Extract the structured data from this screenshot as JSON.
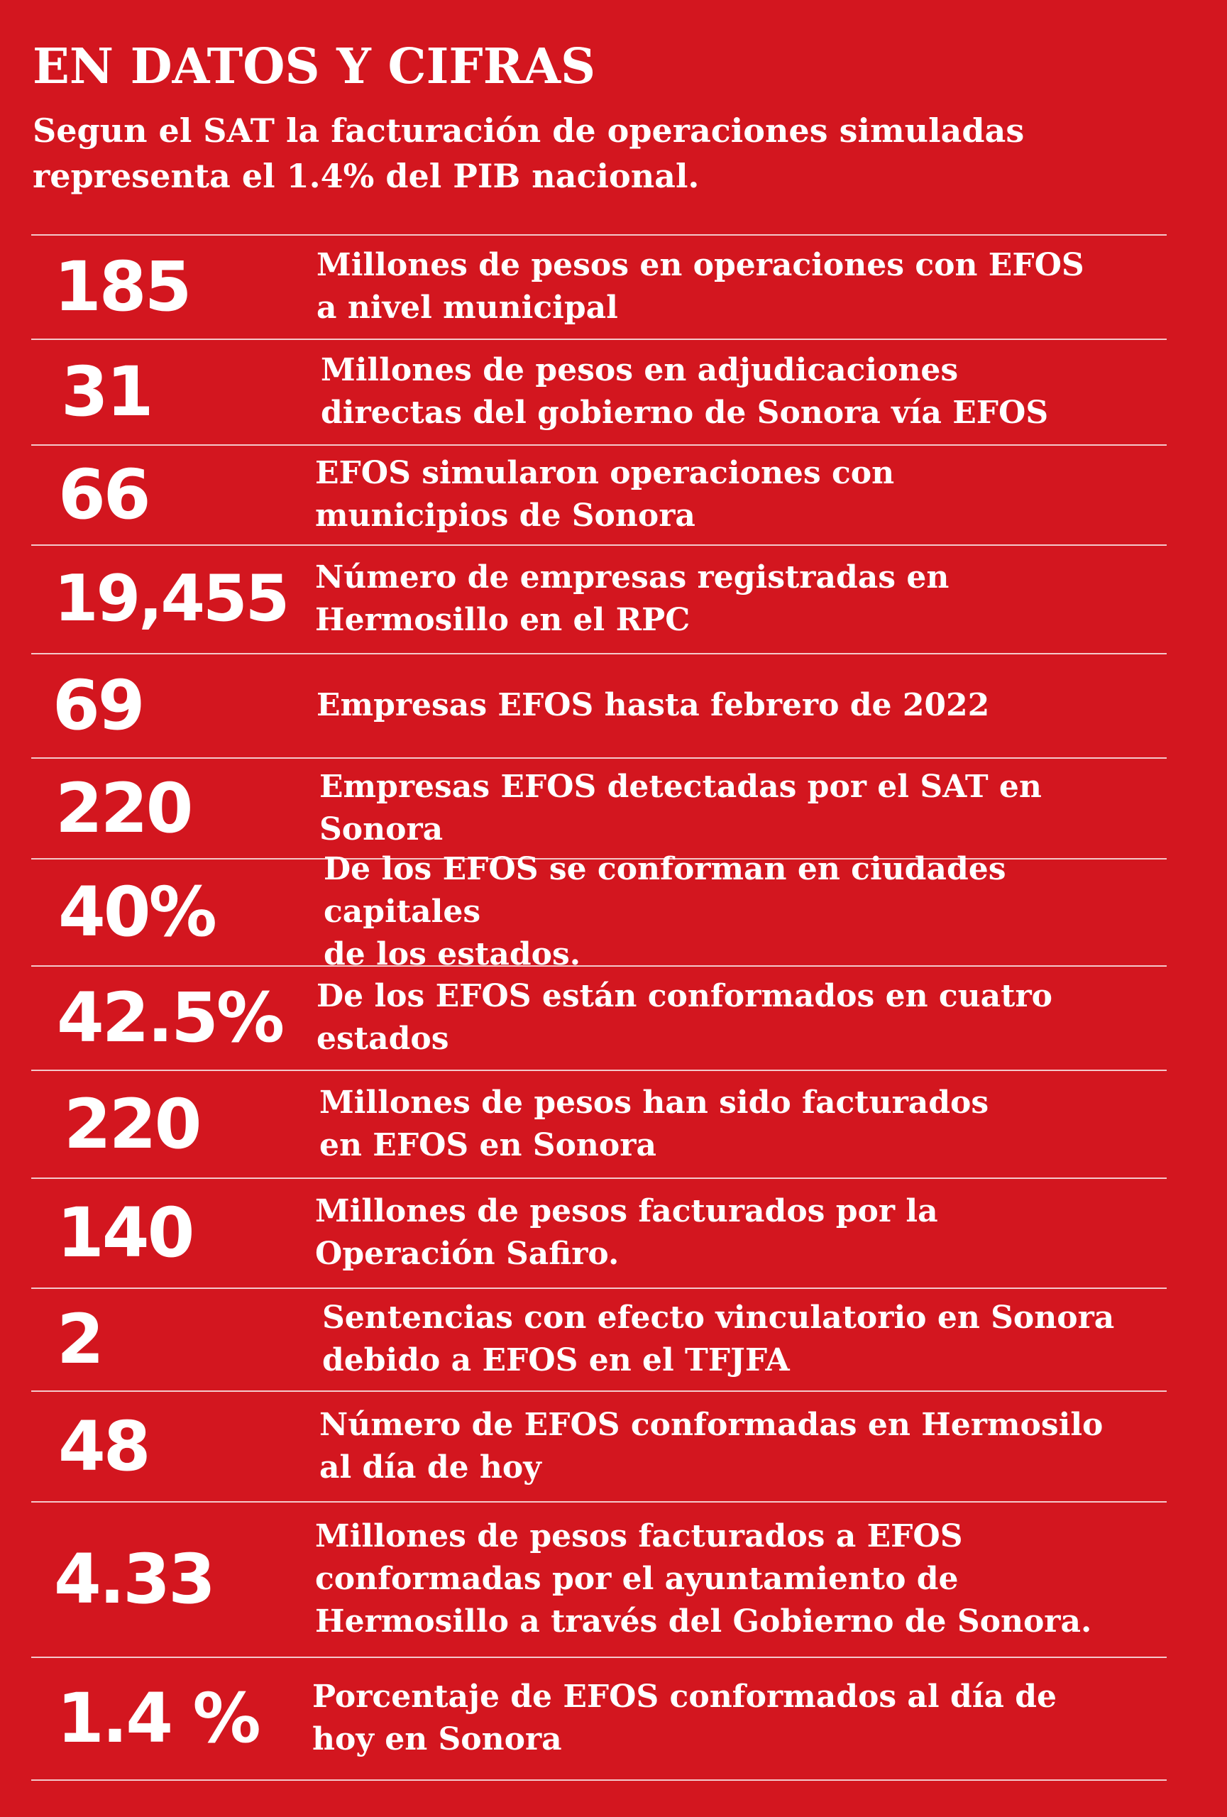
{
  "header": {
    "title": "EN DATOS Y CIFRAS",
    "subtitle": "Segun el SAT la facturación de operaciones simuladas\nrepresenta el 1.4% del PIB nacional."
  },
  "stats": [
    {
      "value": "185",
      "description": "Millones de pesos en operaciones con EFOS\na nivel municipal"
    },
    {
      "value": "31",
      "description": "Millones de pesos en adjudicaciones\ndirectas del gobierno de Sonora vía EFOS"
    },
    {
      "value": "66",
      "description": "EFOS simularon operaciones con\nmunicipios de Sonora"
    },
    {
      "value": "19,455",
      "description": "Número de  empresas registradas en\nHermosillo en el RPC"
    },
    {
      "value": "69",
      "description": "Empresas EFOS  hasta febrero de 2022"
    },
    {
      "value": "220",
      "description": "Empresas EFOS detectadas por el SAT en Sonora"
    },
    {
      "value": "40%",
      "description": "De los EFOS se conforman en ciudades capitales\nde los estados."
    },
    {
      "value": "42.5%",
      "description": "De los EFOS están conformados en cuatro\nestados"
    },
    {
      "value": "220",
      "description": "Millones de pesos han sido facturados\nen EFOS en Sonora"
    },
    {
      "value": "140",
      "description": "Millones de pesos facturados por la\nOperación Safiro."
    },
    {
      "value": "2",
      "description": "Sentencias con efecto vinculatorio en Sonora\ndebido a EFOS en el TFJFA"
    },
    {
      "value": "48",
      "description": "Número de EFOS conformadas en Hermosilo\nal día de hoy"
    },
    {
      "value": "4.33",
      "description": "Millones de pesos facturados a EFOS\nconformadas por el ayuntamiento de\nHermosillo a través del Gobierno de Sonora."
    },
    {
      "value": "1.4 %",
      "description": "Porcentaje de EFOS conformados al día de\nhoy en Sonora"
    }
  ]
}
